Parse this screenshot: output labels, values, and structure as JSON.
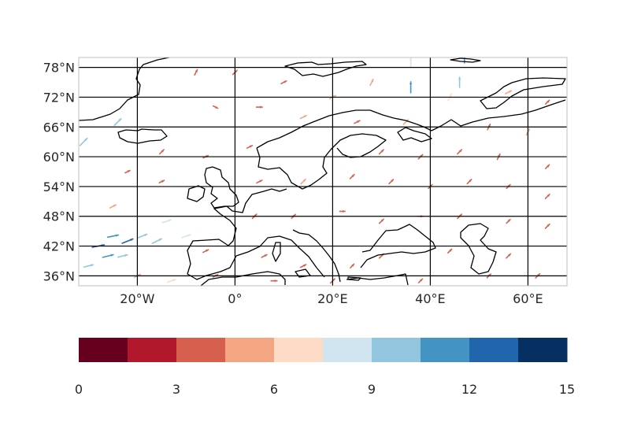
{
  "map": {
    "projection": "PlateCarree",
    "extent": {
      "lon": [
        -32,
        68
      ],
      "lat": [
        34,
        80
      ]
    },
    "lat_ticks": [
      {
        "value": 78,
        "label": "78°N"
      },
      {
        "value": 72,
        "label": "72°N"
      },
      {
        "value": 66,
        "label": "66°N"
      },
      {
        "value": 60,
        "label": "60°N"
      },
      {
        "value": 54,
        "label": "54°N"
      },
      {
        "value": 48,
        "label": "48°N"
      },
      {
        "value": 42,
        "label": "42°N"
      },
      {
        "value": 36,
        "label": "36°N"
      }
    ],
    "lon_ticks": [
      {
        "value": -20,
        "label": "20°W"
      },
      {
        "value": 0,
        "label": "0°"
      },
      {
        "value": 20,
        "label": "20°E"
      },
      {
        "value": 40,
        "label": "40°E"
      },
      {
        "value": 60,
        "label": "60°E"
      }
    ],
    "gridlines": true,
    "coastline_color": "#000000"
  },
  "colorbar": {
    "orientation": "horizontal",
    "placement": "bottom",
    "vmin": 0,
    "vmax": 15,
    "colors": [
      "#67001f",
      "#b2182b",
      "#d6604d",
      "#f4a582",
      "#fddbc7",
      "#d1e5f0",
      "#92c5de",
      "#4393c3",
      "#2166ac",
      "#053061"
    ],
    "ticks": [
      {
        "value": 0,
        "label": "0"
      },
      {
        "value": 3,
        "label": "3"
      },
      {
        "value": 6,
        "label": "6"
      },
      {
        "value": 9,
        "label": "9"
      },
      {
        "value": 12,
        "label": "12"
      },
      {
        "value": 15,
        "label": "15"
      }
    ]
  },
  "wind_vectors": [
    {
      "lon": -28,
      "lat": 42,
      "u": 5,
      "v": 1,
      "speed": 13
    },
    {
      "lon": -25,
      "lat": 44,
      "u": 5,
      "v": 1,
      "speed": 11
    },
    {
      "lon": -22,
      "lat": 43,
      "u": 5,
      "v": 2,
      "speed": 12
    },
    {
      "lon": -19,
      "lat": 44,
      "u": 5,
      "v": 2,
      "speed": 10
    },
    {
      "lon": -16,
      "lat": 43,
      "u": 4,
      "v": 2,
      "speed": 10
    },
    {
      "lon": -26,
      "lat": 40,
      "u": 4,
      "v": 1,
      "speed": 11
    },
    {
      "lon": -23,
      "lat": 40,
      "u": 4,
      "v": 1,
      "speed": 9
    },
    {
      "lon": -30,
      "lat": 38,
      "u": 4,
      "v": 1,
      "speed": 9
    },
    {
      "lon": -31,
      "lat": 63,
      "u": 3,
      "v": 3,
      "speed": 10
    },
    {
      "lon": -24,
      "lat": 67,
      "u": 2,
      "v": 2,
      "speed": 9
    },
    {
      "lon": 36,
      "lat": 74,
      "u": 0,
      "v": 5,
      "speed": 11
    },
    {
      "lon": 46,
      "lat": 75,
      "u": 0,
      "v": 4,
      "speed": 10
    },
    {
      "lon": 47,
      "lat": 80,
      "u": 0,
      "v": 4,
      "speed": 11
    },
    {
      "lon": -14,
      "lat": 47,
      "u": 3,
      "v": 1,
      "speed": 8
    },
    {
      "lon": -10,
      "lat": 44,
      "u": 3,
      "v": 1,
      "speed": 8
    },
    {
      "lon": -13,
      "lat": 35,
      "u": 3,
      "v": 1,
      "speed": 7
    },
    {
      "lon": 36,
      "lat": 79,
      "u": 0,
      "v": 3,
      "speed": 8
    },
    {
      "lon": -8,
      "lat": 77,
      "u": 1,
      "v": 2,
      "speed": 4
    },
    {
      "lon": 0,
      "lat": 77,
      "u": 1,
      "v": 1,
      "speed": 4
    },
    {
      "lon": 10,
      "lat": 75,
      "u": 2,
      "v": 1,
      "speed": 4
    },
    {
      "lon": 20,
      "lat": 72,
      "u": 2,
      "v": 1,
      "speed": 5
    },
    {
      "lon": 28,
      "lat": 75,
      "u": 1,
      "v": 2,
      "speed": 5
    },
    {
      "lon": 44,
      "lat": 72,
      "u": 1,
      "v": 2,
      "speed": 6
    },
    {
      "lon": 56,
      "lat": 73,
      "u": 2,
      "v": 1,
      "speed": 5
    },
    {
      "lon": 64,
      "lat": 71,
      "u": 2,
      "v": 2,
      "speed": 3
    },
    {
      "lon": -4,
      "lat": 70,
      "u": 2,
      "v": -1,
      "speed": 3
    },
    {
      "lon": 5,
      "lat": 70,
      "u": 2,
      "v": 0,
      "speed": 4
    },
    {
      "lon": 14,
      "lat": 68,
      "u": 2,
      "v": 1,
      "speed": 5
    },
    {
      "lon": 25,
      "lat": 67,
      "u": 2,
      "v": 1,
      "speed": 4
    },
    {
      "lon": 35,
      "lat": 67,
      "u": 1,
      "v": 1,
      "speed": 5
    },
    {
      "lon": 52,
      "lat": 66,
      "u": 1,
      "v": 2,
      "speed": 4
    },
    {
      "lon": 60,
      "lat": 65,
      "u": 1,
      "v": 2,
      "speed": 5
    },
    {
      "lon": -15,
      "lat": 61,
      "u": 2,
      "v": 2,
      "speed": 4
    },
    {
      "lon": -6,
      "lat": 60,
      "u": 2,
      "v": 1,
      "speed": 3
    },
    {
      "lon": 3,
      "lat": 62,
      "u": 2,
      "v": 1,
      "speed": 4
    },
    {
      "lon": 30,
      "lat": 61,
      "u": 1,
      "v": 1,
      "speed": 4
    },
    {
      "lon": 38,
      "lat": 60,
      "u": 1,
      "v": 1,
      "speed": 4
    },
    {
      "lon": 46,
      "lat": 61,
      "u": 1,
      "v": 1,
      "speed": 4
    },
    {
      "lon": 54,
      "lat": 60,
      "u": 1,
      "v": 2,
      "speed": 4
    },
    {
      "lon": 64,
      "lat": 58,
      "u": 1,
      "v": 1,
      "speed": 3
    },
    {
      "lon": -22,
      "lat": 57,
      "u": 2,
      "v": 1,
      "speed": 3
    },
    {
      "lon": -15,
      "lat": 55,
      "u": 2,
      "v": 1,
      "speed": 3
    },
    {
      "lon": 5,
      "lat": 55,
      "u": 2,
      "v": 1,
      "speed": 4
    },
    {
      "lon": 14,
      "lat": 55,
      "u": 1,
      "v": 1,
      "speed": 5
    },
    {
      "lon": 24,
      "lat": 56,
      "u": 1,
      "v": 1,
      "speed": 4
    },
    {
      "lon": 32,
      "lat": 55,
      "u": 1,
      "v": 1,
      "speed": 4
    },
    {
      "lon": 40,
      "lat": 54,
      "u": 1,
      "v": 1,
      "speed": 3
    },
    {
      "lon": 48,
      "lat": 55,
      "u": 1,
      "v": 1,
      "speed": 4
    },
    {
      "lon": 56,
      "lat": 54,
      "u": 1,
      "v": 1,
      "speed": 3
    },
    {
      "lon": 64,
      "lat": 52,
      "u": 1,
      "v": 1,
      "speed": 4
    },
    {
      "lon": -25,
      "lat": 50,
      "u": 2,
      "v": 1,
      "speed": 5
    },
    {
      "lon": 4,
      "lat": 48,
      "u": 1,
      "v": 1,
      "speed": 4
    },
    {
      "lon": 12,
      "lat": 48,
      "u": 1,
      "v": 1,
      "speed": 3
    },
    {
      "lon": 22,
      "lat": 49,
      "u": 1,
      "v": 0,
      "speed": 3
    },
    {
      "lon": 30,
      "lat": 47,
      "u": 1,
      "v": 1,
      "speed": 4
    },
    {
      "lon": 38,
      "lat": 48,
      "u": 1,
      "v": 0,
      "speed": 3
    },
    {
      "lon": 46,
      "lat": 48,
      "u": 1,
      "v": 1,
      "speed": 4
    },
    {
      "lon": 56,
      "lat": 47,
      "u": 1,
      "v": 1,
      "speed": 3
    },
    {
      "lon": 64,
      "lat": 46,
      "u": 1,
      "v": 1,
      "speed": 4
    },
    {
      "lon": -6,
      "lat": 41,
      "u": 2,
      "v": 1,
      "speed": 4
    },
    {
      "lon": 6,
      "lat": 40,
      "u": 2,
      "v": 1,
      "speed": 4
    },
    {
      "lon": 14,
      "lat": 38,
      "u": 2,
      "v": 1,
      "speed": 4
    },
    {
      "lon": 24,
      "lat": 38,
      "u": 1,
      "v": 1,
      "speed": 3
    },
    {
      "lon": 30,
      "lat": 40,
      "u": 1,
      "v": 1,
      "speed": 4
    },
    {
      "lon": 44,
      "lat": 41,
      "u": 1,
      "v": 1,
      "speed": 3
    },
    {
      "lon": 56,
      "lat": 40,
      "u": 1,
      "v": 1,
      "speed": 4
    },
    {
      "lon": -20,
      "lat": 36,
      "u": 2,
      "v": 1,
      "speed": 5
    },
    {
      "lon": -4,
      "lat": 36,
      "u": 2,
      "v": 1,
      "speed": 3
    },
    {
      "lon": 8,
      "lat": 35,
      "u": 2,
      "v": 0,
      "speed": 4
    },
    {
      "lon": 20,
      "lat": 35,
      "u": 1,
      "v": 1,
      "speed": 4
    },
    {
      "lon": 38,
      "lat": 35,
      "u": 1,
      "v": 1,
      "speed": 3
    },
    {
      "lon": 52,
      "lat": 36,
      "u": 1,
      "v": 1,
      "speed": 3
    },
    {
      "lon": 62,
      "lat": 36,
      "u": 1,
      "v": 1,
      "speed": 4
    }
  ]
}
